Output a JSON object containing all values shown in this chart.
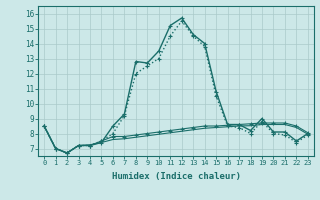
{
  "xlabel": "Humidex (Indice chaleur)",
  "xlim": [
    -0.5,
    23.5
  ],
  "ylim": [
    6.5,
    16.5
  ],
  "yticks": [
    7,
    8,
    9,
    10,
    11,
    12,
    13,
    14,
    15,
    16
  ],
  "xticks": [
    0,
    1,
    2,
    3,
    4,
    5,
    6,
    7,
    8,
    9,
    10,
    11,
    12,
    13,
    14,
    15,
    16,
    17,
    18,
    19,
    20,
    21,
    22,
    23
  ],
  "background_color": "#cce8e8",
  "grid_color": "#aacaca",
  "line_color": "#1a6e6a",
  "series": [
    {
      "y": [
        8.5,
        7.0,
        6.7,
        7.2,
        7.2,
        7.4,
        8.5,
        9.3,
        12.8,
        12.7,
        13.5,
        15.2,
        15.7,
        14.6,
        14.0,
        10.8,
        8.6,
        8.6,
        8.2,
        9.0,
        8.1,
        8.1,
        7.5,
        8.0
      ],
      "linestyle": "-",
      "linewidth": 1.0,
      "marker": "+"
    },
    {
      "y": [
        8.5,
        7.0,
        6.7,
        7.2,
        7.2,
        7.5,
        8.0,
        9.2,
        12.0,
        12.5,
        13.0,
        14.5,
        15.5,
        14.5,
        13.8,
        10.5,
        8.5,
        8.4,
        8.0,
        8.8,
        8.0,
        7.9,
        7.4,
        7.9
      ],
      "linestyle": ":",
      "linewidth": 1.0,
      "marker": "+"
    },
    {
      "y": [
        8.5,
        7.0,
        6.7,
        7.2,
        7.2,
        7.5,
        7.8,
        7.8,
        7.9,
        8.0,
        8.1,
        8.2,
        8.3,
        8.4,
        8.5,
        8.5,
        8.55,
        8.6,
        8.65,
        8.7,
        8.7,
        8.7,
        8.5,
        8.05
      ],
      "linestyle": "-",
      "linewidth": 0.8,
      "marker": "+"
    },
    {
      "y": [
        8.5,
        7.0,
        6.7,
        7.2,
        7.25,
        7.4,
        7.6,
        7.65,
        7.75,
        7.85,
        7.95,
        8.05,
        8.15,
        8.25,
        8.35,
        8.4,
        8.45,
        8.5,
        8.52,
        8.6,
        8.6,
        8.6,
        8.4,
        7.95
      ],
      "linestyle": "-",
      "linewidth": 0.8,
      "marker": null
    }
  ]
}
